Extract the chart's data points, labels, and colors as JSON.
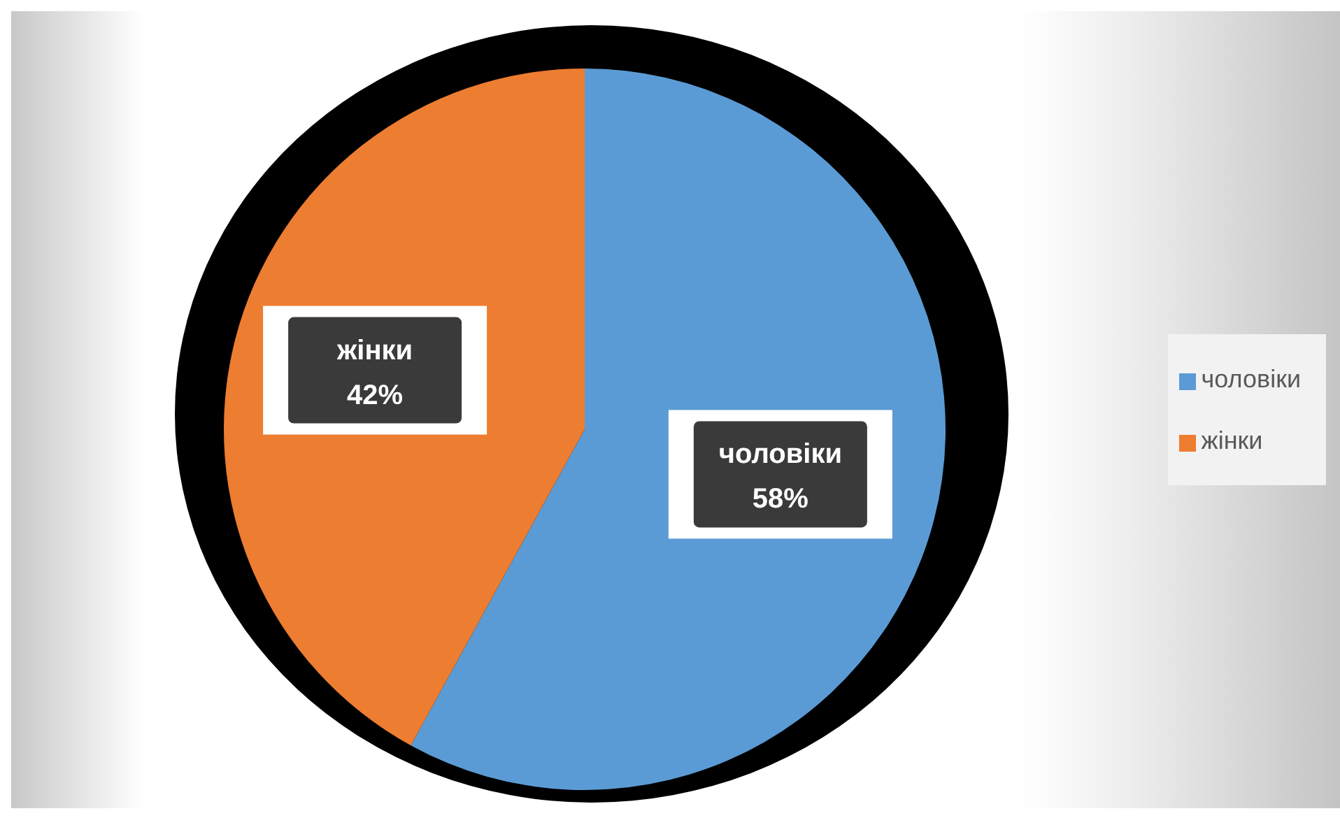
{
  "chart_data": {
    "type": "pie",
    "categories": [
      "чоловіки",
      "жінки"
    ],
    "values": [
      58,
      42
    ],
    "value_labels": [
      "58%",
      "42%"
    ],
    "colors": [
      "#5b9bd5",
      "#ed7d31"
    ],
    "legend": "right"
  }
}
